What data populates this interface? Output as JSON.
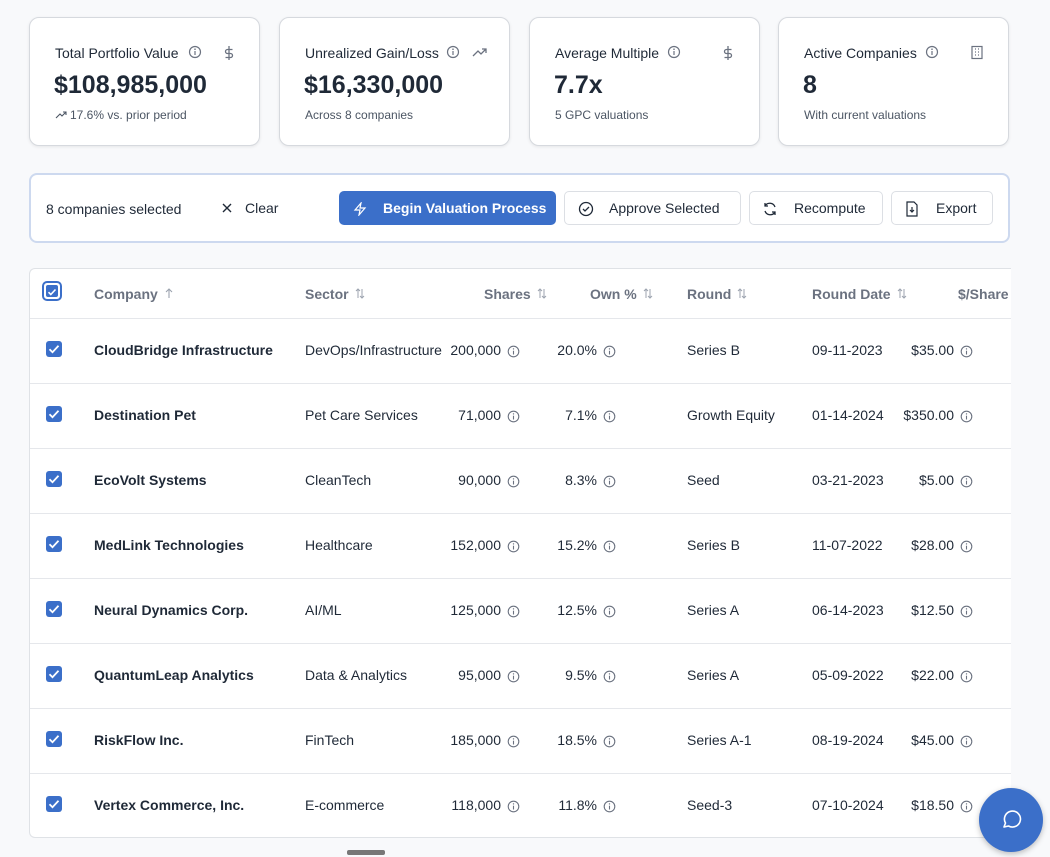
{
  "cards": [
    {
      "title": "Total Portfolio Value",
      "value": "$108,985,000",
      "note": "17.6% vs. prior period"
    },
    {
      "title": "Unrealized Gain/Loss",
      "value": "$16,330,000",
      "note": "Across 8 companies"
    },
    {
      "title": "Average Multiple",
      "value": "7.7x",
      "note": "5 GPC valuations"
    },
    {
      "title": "Active Companies",
      "value": "8",
      "note": "With current valuations"
    }
  ],
  "toolbar": {
    "selected": "8 companies selected",
    "clear": "Clear",
    "begin": "Begin Valuation Process",
    "approve": "Approve Selected",
    "recompute": "Recompute",
    "export": "Export"
  },
  "table": {
    "columns": [
      "Company",
      "Sector",
      "Shares",
      "Own %",
      "Round",
      "Round Date",
      "$/Share"
    ],
    "rows": [
      [
        "CloudBridge Infrastructure",
        "DevOps/Infrastructure",
        "200,000",
        "20.0%",
        "Series B",
        "09-11-2023",
        "$35.00"
      ],
      [
        "Destination Pet",
        "Pet Care Services",
        "71,000",
        "7.1%",
        "Growth Equity",
        "01-14-2024",
        "$350.00"
      ],
      [
        "EcoVolt Systems",
        "CleanTech",
        "90,000",
        "8.3%",
        "Seed",
        "03-21-2023",
        "$5.00"
      ],
      [
        "MedLink Technologies",
        "Healthcare",
        "152,000",
        "15.2%",
        "Series B",
        "11-07-2022",
        "$28.00"
      ],
      [
        "Neural Dynamics Corp.",
        "AI/ML",
        "125,000",
        "12.5%",
        "Series A",
        "06-14-2023",
        "$12.50"
      ],
      [
        "QuantumLeap Analytics",
        "Data & Analytics",
        "95,000",
        "9.5%",
        "Series A",
        "05-09-2022",
        "$22.00"
      ],
      [
        "RiskFlow Inc.",
        "FinTech",
        "185,000",
        "18.5%",
        "Series A-1",
        "08-19-2024",
        "$45.00"
      ],
      [
        "Vertex Commerce, Inc.",
        "E-commerce",
        "118,000",
        "11.8%",
        "Seed-3",
        "07-10-2024",
        "$18.50"
      ]
    ]
  }
}
